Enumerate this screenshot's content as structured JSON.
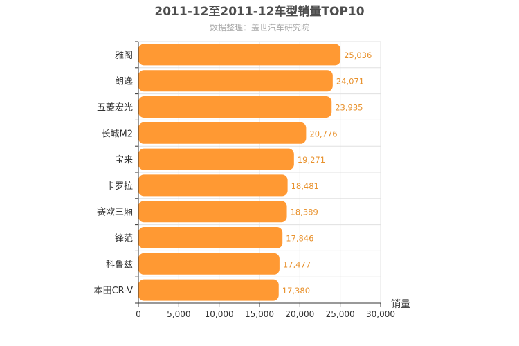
{
  "chart_data": {
    "type": "bar",
    "orientation": "horizontal",
    "title": "2011-12至2011-12车型销量TOP10",
    "subtitle": "数据整理：盖世汽车研究院",
    "categories": [
      "雅阁",
      "朗逸",
      "五菱宏光",
      "长城M2",
      "宝来",
      "卡罗拉",
      "赛欧三厢",
      "锋范",
      "科鲁兹",
      "本田CR-V"
    ],
    "values": [
      25036,
      24071,
      23935,
      20776,
      19271,
      18481,
      18389,
      17846,
      17477,
      17380
    ],
    "value_labels": [
      "25,036",
      "24,071",
      "23,935",
      "20,776",
      "19,271",
      "18,481",
      "18,389",
      "17,846",
      "17,477",
      "17,380"
    ],
    "xlabel": "销量",
    "ylabel": "",
    "xlim": [
      0,
      30000
    ],
    "x_ticks": [
      0,
      5000,
      10000,
      15000,
      20000,
      25000,
      30000
    ],
    "x_tick_labels": [
      "0",
      "5,000",
      "10,000",
      "15,000",
      "20,000",
      "25,000",
      "30,000"
    ],
    "grid": true,
    "bar_color": "#ff9933",
    "label_color": "#e8912c"
  }
}
